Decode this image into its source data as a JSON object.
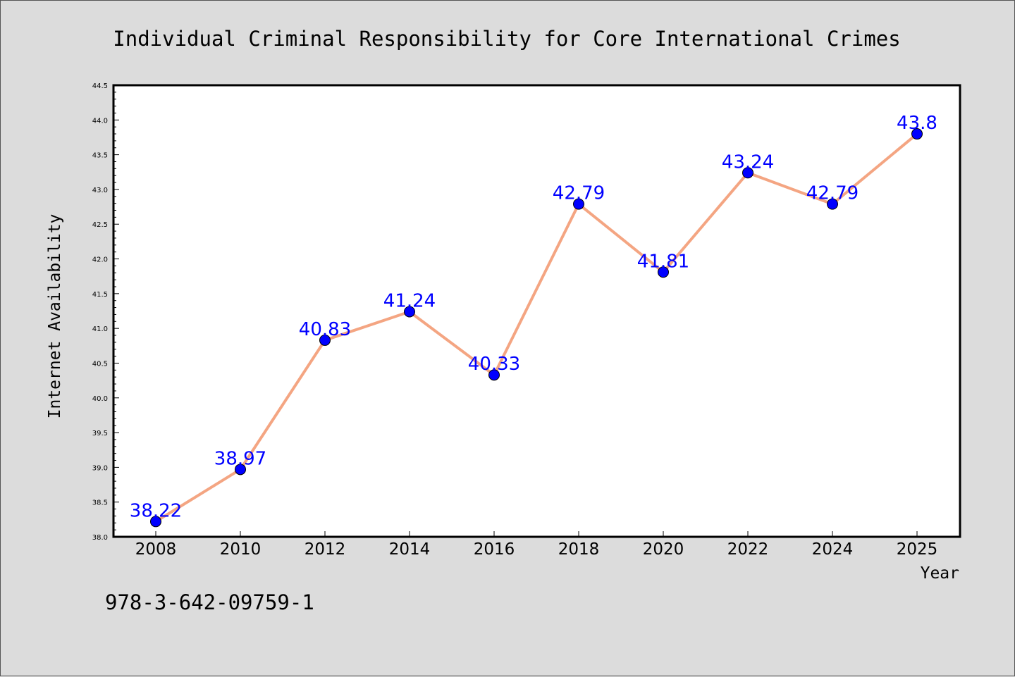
{
  "chart_data": {
    "type": "line",
    "title": "Individual Criminal Responsibility for Core International Crimes",
    "xlabel": "Year",
    "ylabel": "Internet Availability",
    "categories": [
      "2008",
      "2010",
      "2012",
      "2014",
      "2016",
      "2018",
      "2020",
      "2022",
      "2024",
      "2025"
    ],
    "series": [
      {
        "values": [
          38.22,
          38.97,
          40.83,
          41.24,
          40.33,
          42.79,
          41.81,
          43.24,
          42.79,
          43.8
        ],
        "labels": [
          "38.22",
          "38.97",
          "40.83",
          "41.24",
          "40.33",
          "42.79",
          "41.81",
          "43.24",
          "42.79",
          "43.8"
        ]
      }
    ],
    "ylim": [
      38.0,
      44.5
    ],
    "yticks": [
      "38.0",
      "38.5",
      "39.0",
      "39.5",
      "40.0",
      "40.5",
      "41.0",
      "41.5",
      "42.0",
      "42.5",
      "43.0",
      "43.5",
      "44.0",
      "44.5"
    ],
    "grid": false,
    "colors": {
      "line": "#f4a582",
      "marker": "#0000ff",
      "data_label": "#0000ff",
      "background": "#dcdcdc",
      "plot_area": "#ffffff"
    }
  },
  "footer": {
    "isbn": "978-3-642-09759-1"
  }
}
